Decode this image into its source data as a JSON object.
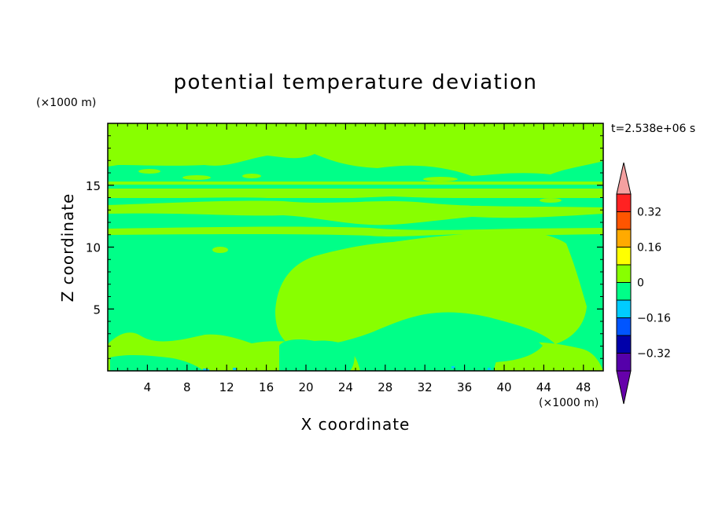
{
  "chart_data": {
    "type": "heatmap",
    "title": "potential temperature deviation",
    "xlabel": "X coordinate",
    "ylabel": "Z coordinate",
    "x_unit": "(×1000 m)",
    "y_unit": "(×1000 m)",
    "time_label": "t=2.538e+06 s",
    "xlim": [
      0,
      50
    ],
    "ylim": [
      0,
      20
    ],
    "x_ticks": [
      4,
      8,
      12,
      16,
      20,
      24,
      28,
      32,
      36,
      40,
      44,
      48
    ],
    "y_ticks": [
      5,
      10,
      15
    ],
    "colorbar": {
      "levels": [
        -0.4,
        -0.32,
        -0.24,
        -0.16,
        -0.08,
        0,
        0.08,
        0.16,
        0.24,
        0.32,
        0.4
      ],
      "labeled_ticks": [
        "0.32",
        "0.16",
        "0",
        "−0.16",
        "−0.32"
      ],
      "labeled_values": [
        0.32,
        0.16,
        0,
        -0.16,
        -0.32
      ],
      "colors": [
        "#5500aa",
        "#0000aa",
        "#0055ff",
        "#00ccff",
        "#00ff88",
        "#88ff00",
        "#ffff00",
        "#ffaa00",
        "#ff5500",
        "#ff2222"
      ],
      "over_color": "#f4a0a0",
      "under_color": "#6600aa"
    },
    "field_colors": {
      "background": "#00ff88",
      "warm": "#88ff00",
      "cool": "#00ccff"
    }
  }
}
